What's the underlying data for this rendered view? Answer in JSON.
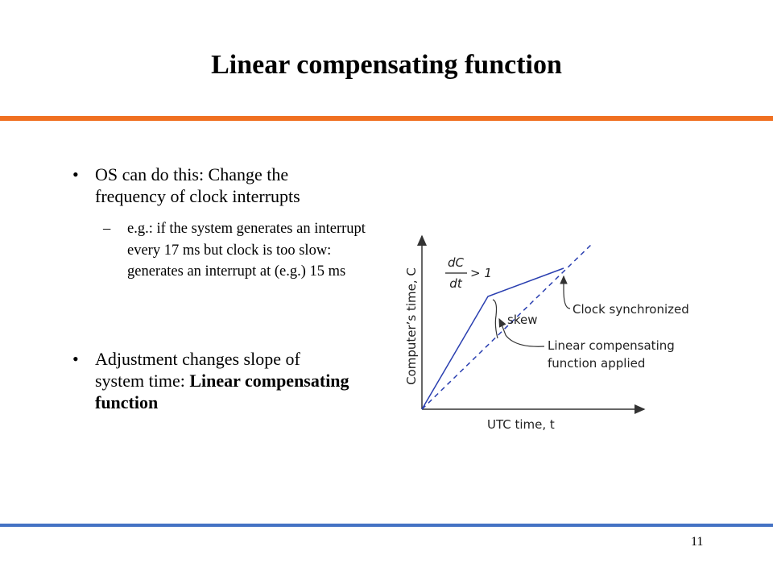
{
  "header": {
    "title": "Linear compensating function"
  },
  "bullets": [
    {
      "text": "OS can do this: Change the frequency of clock interrupts",
      "sub": [
        {
          "text": "e.g.: if the system generates an interrupt every 17 ms but clock is too slow: generates an interrupt at (e.g.) 15 ms"
        }
      ]
    },
    {
      "text": "Adjustment changes slope of system time: ",
      "bold": "Linear compensating function"
    }
  ],
  "figure": {
    "y_axis_label": "Computer’s time, C",
    "x_axis_label": "UTC time, t",
    "slope_numerator": "dC",
    "slope_denominator": "dt",
    "slope_condition": "> 1",
    "skew_label": "skew",
    "sync_label": "Clock synchronized",
    "comp_label_lines": [
      "Linear compensating",
      "function applied"
    ]
  },
  "footer": {
    "page_number": "11"
  }
}
